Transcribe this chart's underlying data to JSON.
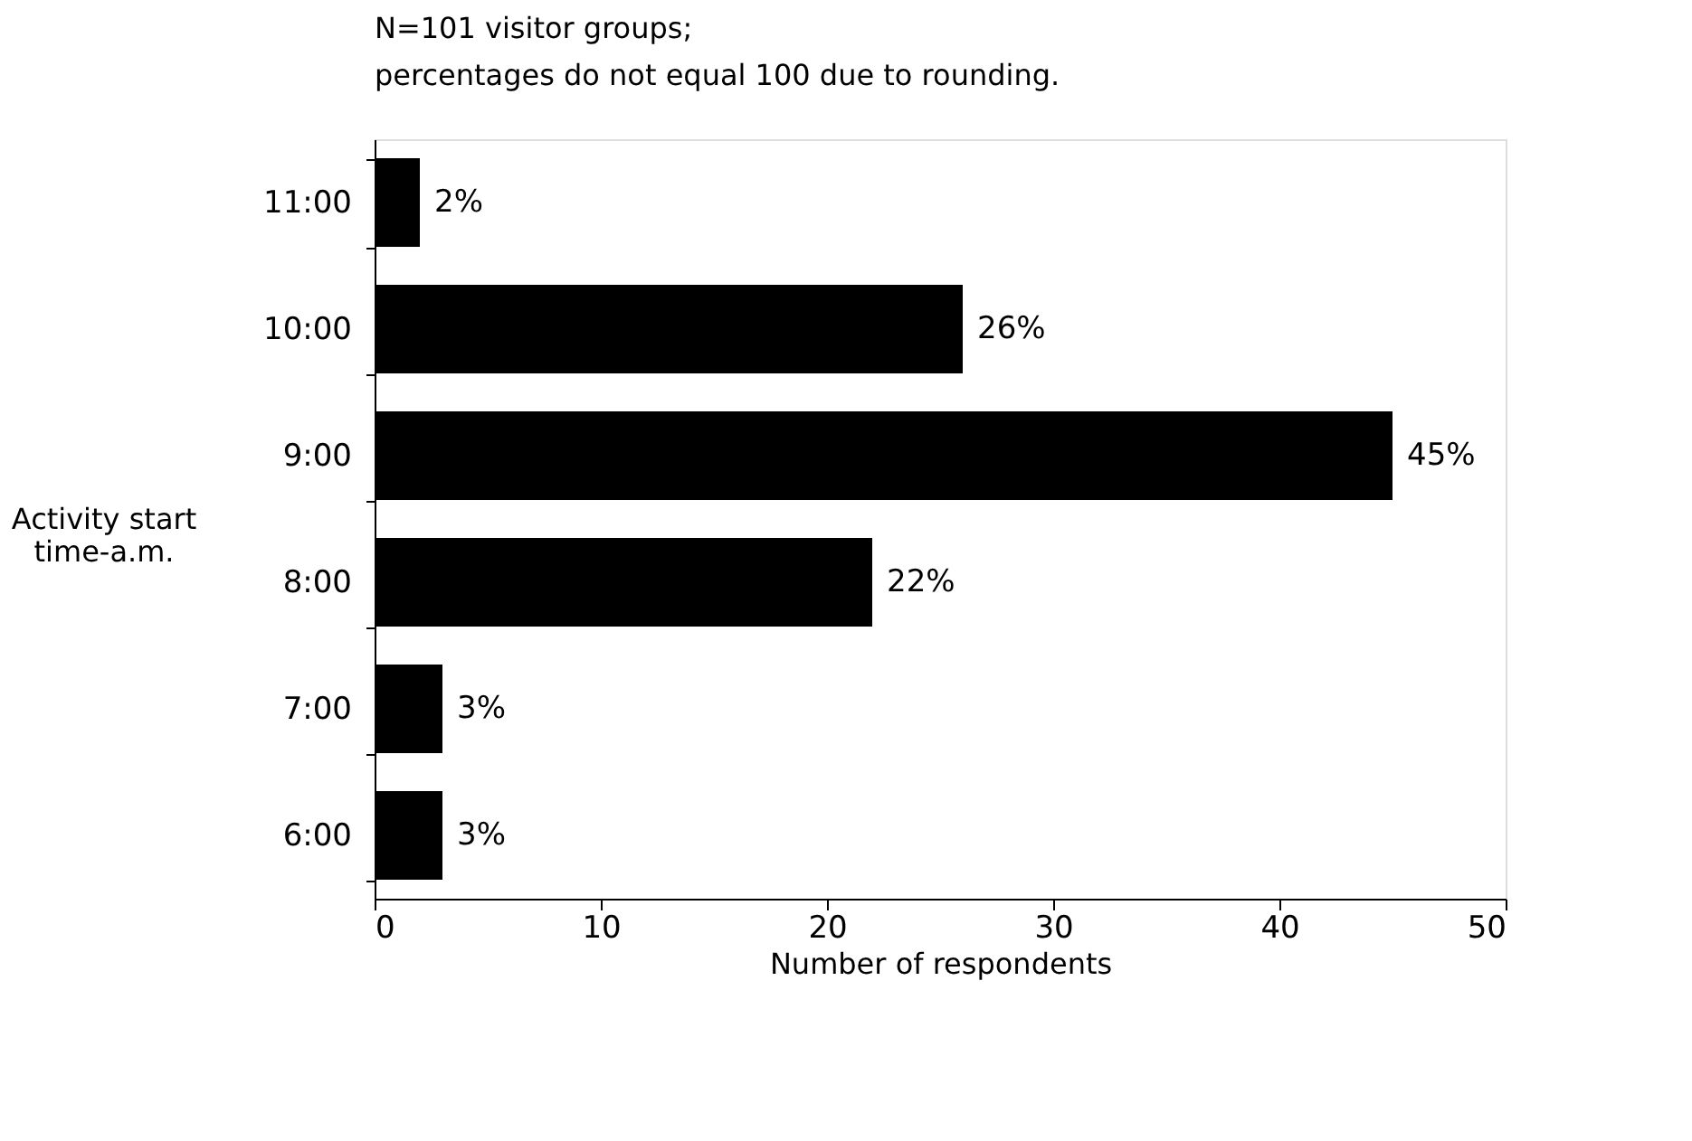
{
  "chart_data": {
    "type": "bar",
    "orientation": "horizontal",
    "title": "N=101 visitor groups;",
    "subtitle": "percentages do not equal 100 due to rounding.",
    "xlabel": "Number of respondents",
    "ylabel": "Activity start time-a.m.",
    "categories": [
      "11:00",
      "10:00",
      "9:00",
      "8:00",
      "7:00",
      "6:00"
    ],
    "values": [
      2,
      26,
      45,
      22,
      3,
      3
    ],
    "value_labels": [
      "2%",
      "26%",
      "45%",
      "22%",
      "3%",
      "3%"
    ],
    "color": "#000000",
    "xlim": [
      0,
      50
    ],
    "xticks": [
      0,
      10,
      20,
      30,
      40,
      50
    ],
    "grid": false
  }
}
